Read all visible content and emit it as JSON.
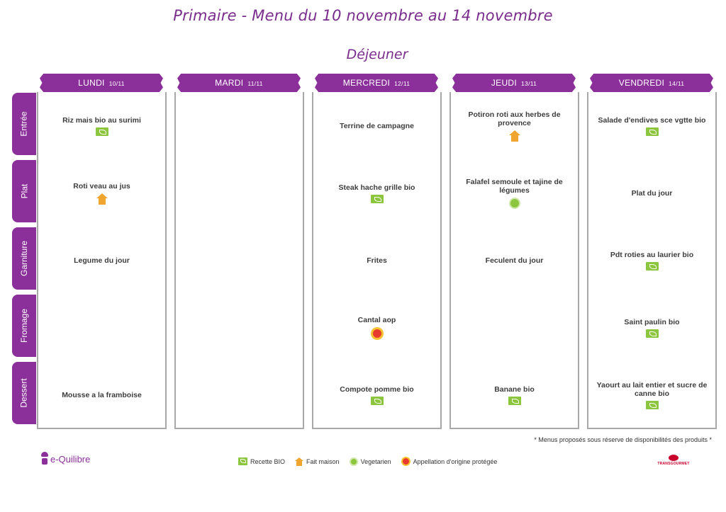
{
  "header": {
    "title": "Primaire - Menu du 10 novembre au 14 novembre",
    "meal": "Déjeuner"
  },
  "days": [
    {
      "name": "LUNDI",
      "date": "10/11"
    },
    {
      "name": "MARDI",
      "date": "11/11"
    },
    {
      "name": "MERCREDI",
      "date": "12/11"
    },
    {
      "name": "JEUDI",
      "date": "13/11"
    },
    {
      "name": "VENDREDI",
      "date": "14/11"
    }
  ],
  "courses": [
    "Entrée",
    "Plat",
    "Garniture",
    "Fromage",
    "Dessert"
  ],
  "menu": [
    [
      {
        "dish": "Riz mais bio au surimi",
        "icons": [
          "bio"
        ]
      },
      {
        "dish": "",
        "icons": []
      },
      {
        "dish": "Terrine de campagne",
        "icons": []
      },
      {
        "dish": "Potiron roti aux herbes de provence",
        "icons": [
          "maison"
        ]
      },
      {
        "dish": "Salade d'endives sce vgtte bio",
        "icons": [
          "bio"
        ]
      }
    ],
    [
      {
        "dish": "Roti veau au jus",
        "icons": [
          "maison"
        ]
      },
      {
        "dish": "",
        "icons": []
      },
      {
        "dish": "Steak hache grille bio",
        "icons": [
          "bio"
        ]
      },
      {
        "dish": "Falafel semoule et tajine de légumes",
        "icons": [
          "vegetarien"
        ]
      },
      {
        "dish": "Plat du jour",
        "icons": []
      }
    ],
    [
      {
        "dish": "Legume du jour",
        "icons": []
      },
      {
        "dish": "",
        "icons": []
      },
      {
        "dish": "Frites",
        "icons": []
      },
      {
        "dish": "Feculent du jour",
        "icons": []
      },
      {
        "dish": "Pdt roties au laurier bio",
        "icons": [
          "bio"
        ]
      }
    ],
    [
      {
        "dish": "",
        "icons": []
      },
      {
        "dish": "",
        "icons": []
      },
      {
        "dish": "Cantal aop",
        "icons": [
          "aop"
        ]
      },
      {
        "dish": "",
        "icons": []
      },
      {
        "dish": "Saint paulin bio",
        "icons": [
          "bio"
        ]
      }
    ],
    [
      {
        "dish": "Mousse a la framboise",
        "icons": []
      },
      {
        "dish": "",
        "icons": []
      },
      {
        "dish": "Compote pomme bio",
        "icons": [
          "bio"
        ]
      },
      {
        "dish": "Banane bio",
        "icons": [
          "bio"
        ]
      },
      {
        "dish": "Yaourt au lait entier et sucre de canne bio",
        "icons": [
          "bio"
        ]
      }
    ]
  ],
  "footer": {
    "note": "* Menus proposés sous réserve de disponibilités des produits *",
    "legend": [
      {
        "icon": "bio",
        "label": "Recette BIO"
      },
      {
        "icon": "maison",
        "label": "Fait maison"
      },
      {
        "icon": "vegetarien",
        "label": "Vegetarien"
      },
      {
        "icon": "aop",
        "label": "Appellation d'origine protégée"
      }
    ],
    "brand_left": "e-Quilibre",
    "brand_right": "TRANSGOURMET"
  },
  "colors": {
    "accent": "#8b2f9a",
    "bio": "#8cc63f",
    "maison": "#f0a530",
    "aop": "#e63b2e",
    "brand_right": "#c7002c"
  },
  "icon_names": {
    "bio": "bio-leaf-icon",
    "maison": "house-icon",
    "vegetarien": "vegetarian-icon",
    "aop": "aop-seal-icon"
  }
}
